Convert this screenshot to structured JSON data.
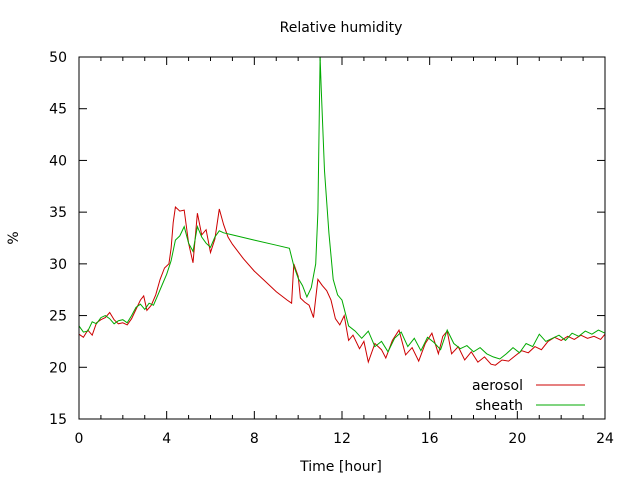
{
  "chart_data": {
    "type": "line",
    "title": "Relative humidity",
    "xlabel": "Time [hour]",
    "ylabel": "%",
    "xlim": [
      0,
      24
    ],
    "ylim": [
      15,
      50
    ],
    "xticks": [
      0,
      4,
      8,
      12,
      16,
      20,
      24
    ],
    "yticks": [
      15,
      20,
      25,
      30,
      35,
      40,
      45,
      50
    ],
    "grid": false,
    "legend": "bottom-right",
    "series": [
      {
        "name": "aerosol",
        "color": "#cc0000",
        "points": [
          [
            0.0,
            23.2
          ],
          [
            0.2,
            22.9
          ],
          [
            0.4,
            23.6
          ],
          [
            0.6,
            23.1
          ],
          [
            0.8,
            24.3
          ],
          [
            1.0,
            24.6
          ],
          [
            1.2,
            24.8
          ],
          [
            1.4,
            25.3
          ],
          [
            1.6,
            24.6
          ],
          [
            1.8,
            24.2
          ],
          [
            2.0,
            24.3
          ],
          [
            2.2,
            24.1
          ],
          [
            2.4,
            24.7
          ],
          [
            2.6,
            25.6
          ],
          [
            2.8,
            26.5
          ],
          [
            2.95,
            26.9
          ],
          [
            3.1,
            25.5
          ],
          [
            3.3,
            26.0
          ],
          [
            3.5,
            27.0
          ],
          [
            3.7,
            28.5
          ],
          [
            3.9,
            29.6
          ],
          [
            4.1,
            30.0
          ],
          [
            4.2,
            31.5
          ],
          [
            4.3,
            34.0
          ],
          [
            4.4,
            35.5
          ],
          [
            4.6,
            35.1
          ],
          [
            4.8,
            35.2
          ],
          [
            5.0,
            32.0
          ],
          [
            5.2,
            30.1
          ],
          [
            5.4,
            34.9
          ],
          [
            5.6,
            32.8
          ],
          [
            5.8,
            33.3
          ],
          [
            6.0,
            31.1
          ],
          [
            6.2,
            32.4
          ],
          [
            6.4,
            35.3
          ],
          [
            6.6,
            33.8
          ],
          [
            6.8,
            32.6
          ],
          [
            7.0,
            31.9
          ],
          [
            7.5,
            30.5
          ],
          [
            8.0,
            29.3
          ],
          [
            8.5,
            28.3
          ],
          [
            9.0,
            27.3
          ],
          [
            9.5,
            26.5
          ],
          [
            9.7,
            26.2
          ],
          [
            9.8,
            30.0
          ],
          [
            10.0,
            28.8
          ],
          [
            10.1,
            26.7
          ],
          [
            10.3,
            26.3
          ],
          [
            10.5,
            26.0
          ],
          [
            10.7,
            24.8
          ],
          [
            10.9,
            28.5
          ],
          [
            11.1,
            27.9
          ],
          [
            11.3,
            27.4
          ],
          [
            11.5,
            26.5
          ],
          [
            11.7,
            24.7
          ],
          [
            11.9,
            24.1
          ],
          [
            12.1,
            25.0
          ],
          [
            12.3,
            22.6
          ],
          [
            12.5,
            23.1
          ],
          [
            12.8,
            21.8
          ],
          [
            13.0,
            22.5
          ],
          [
            13.2,
            20.5
          ],
          [
            13.5,
            22.3
          ],
          [
            13.8,
            21.7
          ],
          [
            14.0,
            20.9
          ],
          [
            14.3,
            22.6
          ],
          [
            14.6,
            23.6
          ],
          [
            14.9,
            21.2
          ],
          [
            15.2,
            21.9
          ],
          [
            15.5,
            20.6
          ],
          [
            15.8,
            22.3
          ],
          [
            16.1,
            23.3
          ],
          [
            16.4,
            21.3
          ],
          [
            16.6,
            23.0
          ],
          [
            16.8,
            23.5
          ],
          [
            17.0,
            21.3
          ],
          [
            17.3,
            22.0
          ],
          [
            17.6,
            20.7
          ],
          [
            17.9,
            21.5
          ],
          [
            18.2,
            20.5
          ],
          [
            18.5,
            21.0
          ],
          [
            18.8,
            20.3
          ],
          [
            19.0,
            20.2
          ],
          [
            19.3,
            20.7
          ],
          [
            19.6,
            20.6
          ],
          [
            19.9,
            21.1
          ],
          [
            20.2,
            21.6
          ],
          [
            20.5,
            21.4
          ],
          [
            20.8,
            22.0
          ],
          [
            21.1,
            21.7
          ],
          [
            21.4,
            22.5
          ],
          [
            21.7,
            22.9
          ],
          [
            22.0,
            22.6
          ],
          [
            22.3,
            23.0
          ],
          [
            22.6,
            22.7
          ],
          [
            22.9,
            23.1
          ],
          [
            23.2,
            22.8
          ],
          [
            23.5,
            23.0
          ],
          [
            23.8,
            22.7
          ],
          [
            24.0,
            23.2
          ]
        ]
      },
      {
        "name": "sheath",
        "color": "#00aa00",
        "points": [
          [
            0.0,
            24.0
          ],
          [
            0.2,
            23.4
          ],
          [
            0.4,
            23.5
          ],
          [
            0.6,
            24.4
          ],
          [
            0.8,
            24.2
          ],
          [
            1.0,
            24.8
          ],
          [
            1.2,
            25.0
          ],
          [
            1.4,
            24.7
          ],
          [
            1.6,
            24.2
          ],
          [
            1.8,
            24.5
          ],
          [
            2.0,
            24.6
          ],
          [
            2.2,
            24.3
          ],
          [
            2.4,
            25.0
          ],
          [
            2.6,
            25.8
          ],
          [
            2.8,
            26.1
          ],
          [
            3.0,
            25.6
          ],
          [
            3.2,
            26.2
          ],
          [
            3.4,
            26.0
          ],
          [
            3.6,
            27.0
          ],
          [
            3.8,
            28.0
          ],
          [
            4.0,
            29.0
          ],
          [
            4.2,
            30.3
          ],
          [
            4.4,
            32.3
          ],
          [
            4.6,
            32.7
          ],
          [
            4.8,
            33.6
          ],
          [
            5.0,
            32.0
          ],
          [
            5.2,
            31.2
          ],
          [
            5.4,
            33.6
          ],
          [
            5.6,
            32.6
          ],
          [
            5.8,
            32.0
          ],
          [
            6.0,
            31.6
          ],
          [
            6.2,
            32.6
          ],
          [
            6.4,
            33.2
          ],
          [
            6.6,
            33.0
          ],
          [
            7.0,
            32.8
          ],
          [
            8.0,
            32.3
          ],
          [
            9.0,
            31.8
          ],
          [
            9.6,
            31.5
          ],
          [
            9.8,
            29.8
          ],
          [
            10.0,
            28.6
          ],
          [
            10.2,
            27.9
          ],
          [
            10.4,
            26.8
          ],
          [
            10.6,
            27.7
          ],
          [
            10.8,
            30.0
          ],
          [
            10.9,
            35.0
          ],
          [
            11.0,
            50.0
          ],
          [
            11.05,
            47.0
          ],
          [
            11.2,
            39.0
          ],
          [
            11.4,
            33.0
          ],
          [
            11.6,
            28.5
          ],
          [
            11.8,
            27.0
          ],
          [
            12.0,
            26.5
          ],
          [
            12.3,
            24.0
          ],
          [
            12.6,
            23.5
          ],
          [
            12.9,
            22.8
          ],
          [
            13.2,
            23.5
          ],
          [
            13.5,
            22.0
          ],
          [
            13.8,
            22.5
          ],
          [
            14.1,
            21.5
          ],
          [
            14.4,
            22.8
          ],
          [
            14.7,
            23.4
          ],
          [
            15.0,
            22.0
          ],
          [
            15.3,
            22.8
          ],
          [
            15.6,
            21.6
          ],
          [
            15.9,
            22.9
          ],
          [
            16.2,
            22.4
          ],
          [
            16.5,
            21.7
          ],
          [
            16.8,
            23.6
          ],
          [
            17.1,
            22.3
          ],
          [
            17.4,
            21.8
          ],
          [
            17.7,
            22.1
          ],
          [
            18.0,
            21.5
          ],
          [
            18.3,
            21.9
          ],
          [
            18.6,
            21.3
          ],
          [
            18.9,
            21.0
          ],
          [
            19.2,
            20.8
          ],
          [
            19.5,
            21.3
          ],
          [
            19.8,
            21.9
          ],
          [
            20.1,
            21.4
          ],
          [
            20.4,
            22.3
          ],
          [
            20.7,
            22.0
          ],
          [
            21.0,
            23.2
          ],
          [
            21.3,
            22.5
          ],
          [
            21.6,
            22.8
          ],
          [
            21.9,
            23.1
          ],
          [
            22.2,
            22.6
          ],
          [
            22.5,
            23.3
          ],
          [
            22.8,
            23.0
          ],
          [
            23.1,
            23.5
          ],
          [
            23.4,
            23.2
          ],
          [
            23.7,
            23.6
          ],
          [
            24.0,
            23.3
          ]
        ]
      }
    ]
  }
}
